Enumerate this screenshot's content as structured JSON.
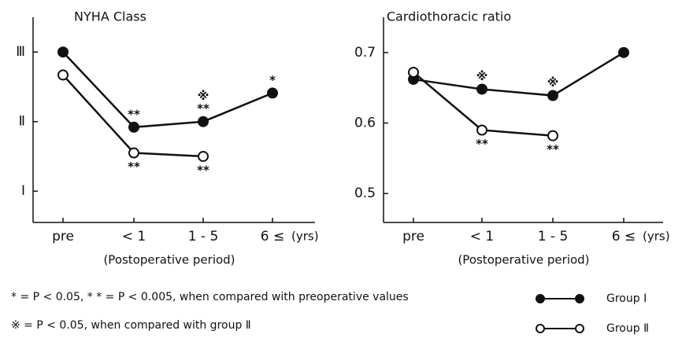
{
  "chart_data": [
    {
      "type": "line",
      "title": "NYHA Class",
      "categories": [
        "pre",
        "< 1",
        "1 - 5",
        "6 ≤"
      ],
      "x_unit": "(yrs)",
      "xlabel": "(Postoperative period)",
      "ylim": [
        0.55,
        3.5
      ],
      "yticks": [
        {
          "value": 1,
          "label": "Ⅰ"
        },
        {
          "value": 2,
          "label": "Ⅱ"
        },
        {
          "value": 3,
          "label": "Ⅲ"
        }
      ],
      "series": [
        {
          "name": "Group Ⅰ",
          "color": "#111111",
          "marker": "filled",
          "values": [
            3.0,
            1.92,
            2.0,
            2.41
          ],
          "annotations": [
            null,
            [
              "**"
            ],
            [
              "※",
              "**"
            ],
            [
              "*"
            ]
          ]
        },
        {
          "name": "Group Ⅱ",
          "color": "#111111",
          "marker": "open",
          "values": [
            2.67,
            1.55,
            1.5,
            null
          ],
          "annotations": [
            null,
            [
              "**"
            ],
            [
              "**"
            ],
            null
          ]
        }
      ]
    },
    {
      "type": "line",
      "title": "Cardiothoracic ratio",
      "categories": [
        "pre",
        "< 1",
        "1 - 5",
        "6 ≤"
      ],
      "x_unit": "(yrs)",
      "xlabel": "(Postoperative period)",
      "ylim": [
        0.459,
        0.75
      ],
      "yticks": [
        0.5,
        0.6,
        0.7
      ],
      "series": [
        {
          "name": "Group Ⅰ",
          "color": "#111111",
          "marker": "filled",
          "values": [
            0.662,
            0.648,
            0.639,
            0.7
          ],
          "annotations": [
            null,
            [
              "※"
            ],
            [
              "※"
            ],
            null
          ]
        },
        {
          "name": "Group Ⅱ",
          "color": "#111111",
          "marker": "open",
          "values": [
            0.672,
            0.59,
            0.582,
            null
          ],
          "annotations": [
            null,
            [
              "**"
            ],
            [
              "**"
            ],
            null
          ]
        }
      ]
    }
  ],
  "footnotes": [
    "* = P < 0.05,  * * = P < 0.005, when compared with preoperative values",
    "※ = P < 0.05,  when compared with group Ⅱ"
  ]
}
